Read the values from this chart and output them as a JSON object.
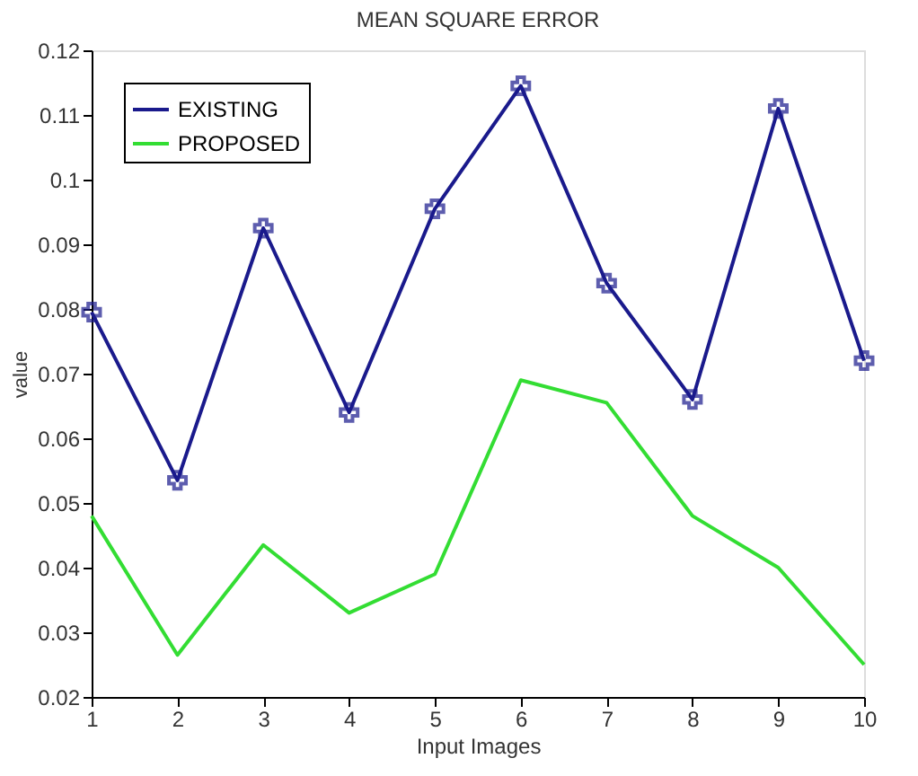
{
  "chart_data": {
    "type": "line",
    "title": "MEAN SQUARE ERROR",
    "xlabel": "Input Images",
    "ylabel": "value",
    "x": [
      1,
      2,
      3,
      4,
      5,
      6,
      7,
      8,
      9,
      10
    ],
    "series": [
      {
        "name": "EXISTING",
        "color": "#1a1a8c",
        "marker": "cross",
        "values": [
          0.0795,
          0.0535,
          0.0925,
          0.064,
          0.0955,
          0.1145,
          0.084,
          0.066,
          0.111,
          0.072
        ]
      },
      {
        "name": "PROPOSED",
        "color": "#33dd33",
        "marker": "none",
        "values": [
          0.048,
          0.0265,
          0.0435,
          0.033,
          0.039,
          0.069,
          0.0655,
          0.048,
          0.04,
          0.025
        ]
      }
    ],
    "xlim": [
      1,
      10
    ],
    "xticks": [
      1,
      2,
      3,
      4,
      5,
      6,
      7,
      8,
      9,
      10
    ],
    "ylim": [
      0.02,
      0.12
    ],
    "yticks": [
      0.02,
      0.03,
      0.04,
      0.05,
      0.06,
      0.07,
      0.08,
      0.09,
      0.1,
      0.11,
      0.12
    ],
    "grid": false,
    "legend": "top left",
    "line_style": "solid"
  }
}
